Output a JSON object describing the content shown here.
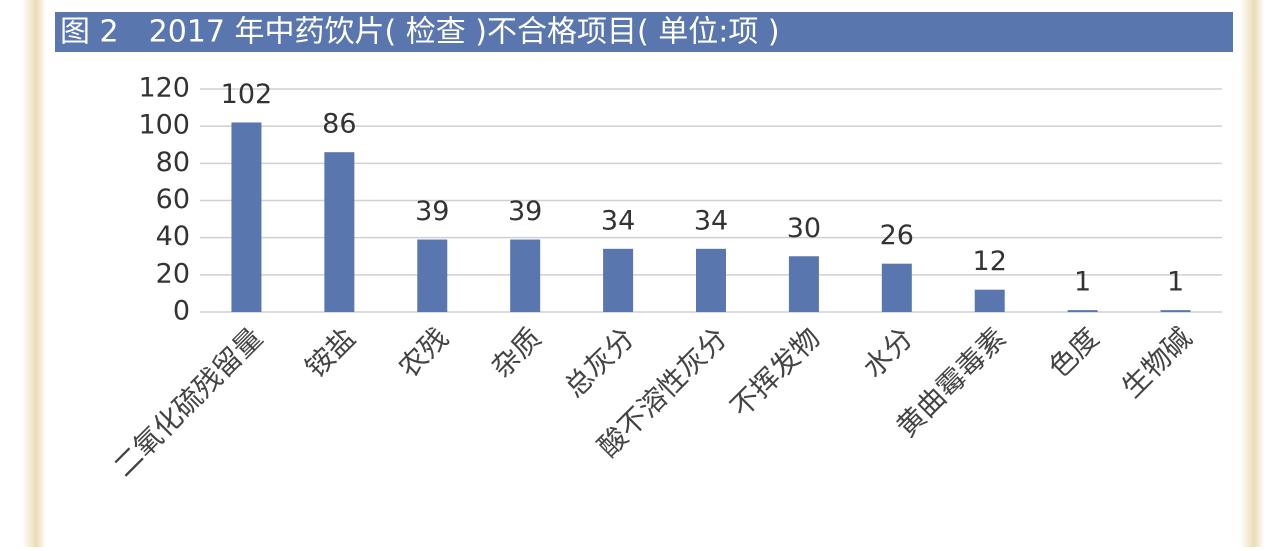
{
  "chart_data": {
    "type": "bar",
    "title": "图 2　2017 年中药饮片( 检查 )不合格项目( 单位:项 )",
    "categories": [
      "二氧化硫残留量",
      "铵盐",
      "农残",
      "杂质",
      "总灰分",
      "酸不溶性灰分",
      "不挥发物",
      "水分",
      "黄曲霉毒素",
      "色度",
      "生物碱"
    ],
    "values": [
      102,
      86,
      39,
      39,
      34,
      34,
      30,
      26,
      12,
      1,
      1
    ],
    "color": "#5a76ae",
    "ylim": [
      0,
      120
    ],
    "yticks": [
      0,
      20,
      40,
      60,
      80,
      100,
      120
    ],
    "grid": true
  }
}
